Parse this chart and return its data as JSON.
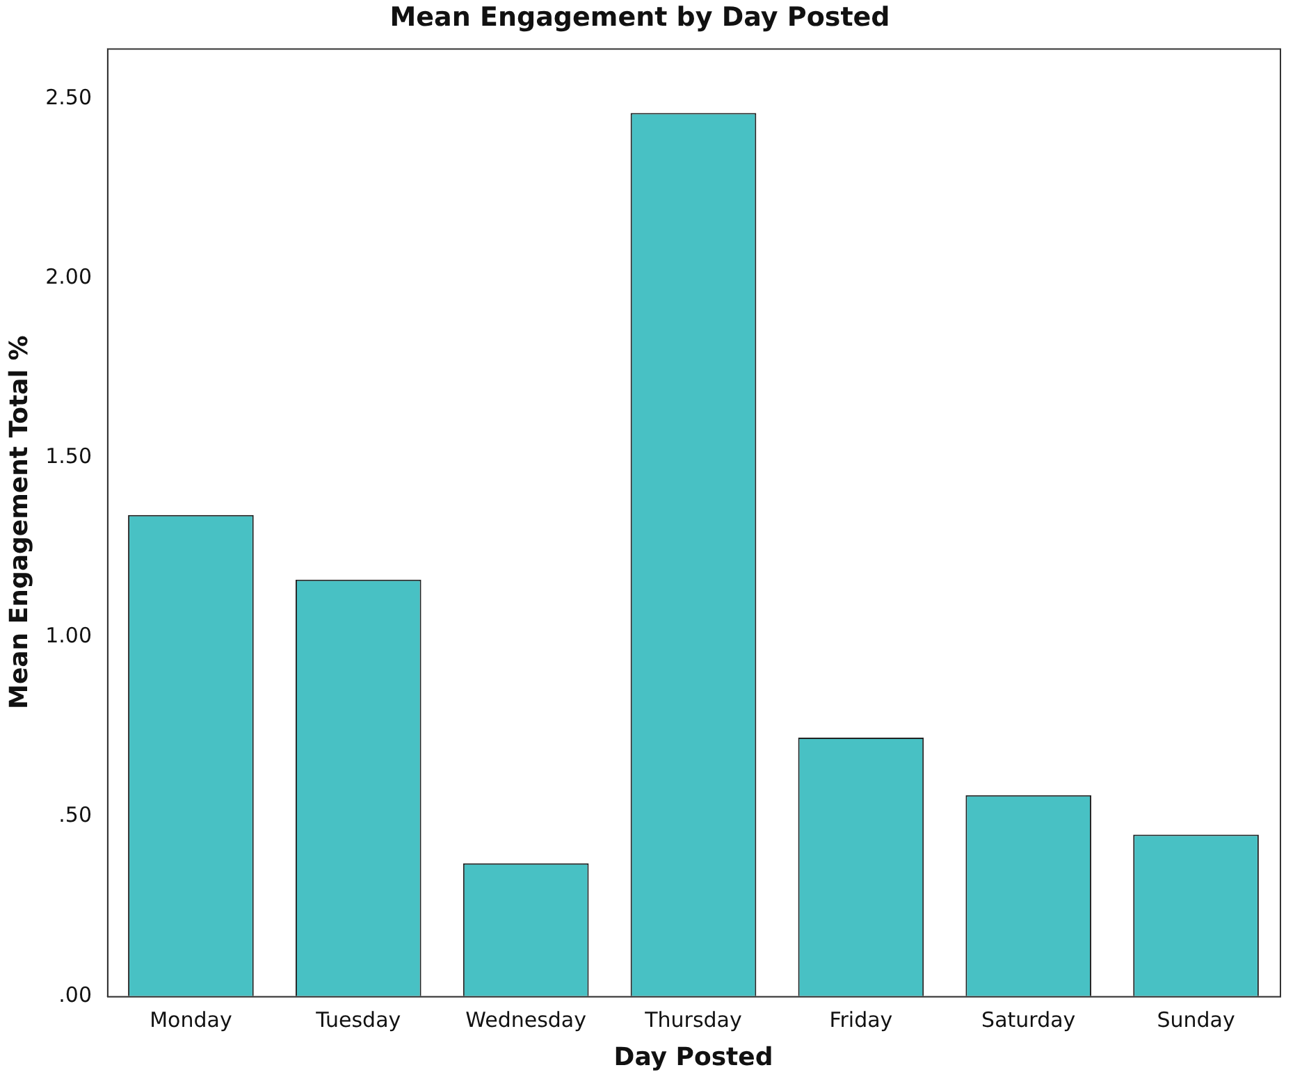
{
  "chart_data": {
    "type": "bar",
    "title": "Mean Engagement by Day Posted",
    "xlabel": "Day Posted",
    "ylabel": "Mean Engagement Total %",
    "categories": [
      "Monday",
      "Tuesday",
      "Wednesday",
      "Thursday",
      "Friday",
      "Saturday",
      "Sunday"
    ],
    "values": [
      1.34,
      1.16,
      0.37,
      2.46,
      0.72,
      0.56,
      0.45
    ],
    "color": "#48c1c4",
    "ylim": [
      0,
      2.64
    ],
    "yticks": [
      {
        "value": 0,
        "label": ".00"
      },
      {
        "value": 0.5,
        "label": ".50"
      },
      {
        "value": 1,
        "label": "1.00"
      },
      {
        "value": 1.5,
        "label": "1.50"
      },
      {
        "value": 2,
        "label": "2.00"
      },
      {
        "value": 2.5,
        "label": "2.50"
      }
    ],
    "grid": false
  }
}
